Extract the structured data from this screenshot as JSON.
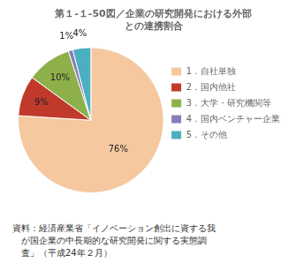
{
  "chart_data": {
    "type": "pie",
    "title": [
      "第１-１-50図／企業の研究開発における外部",
      "との連携割合"
    ],
    "categories": [
      "1．自社単独",
      "2．国内他社",
      "3．大学・研究機関等",
      "4．国内ベンチャー企業",
      "5．その他"
    ],
    "values": [
      76,
      9,
      10,
      1,
      4
    ],
    "value_labels": [
      "76%",
      "9%",
      "10%",
      "1%",
      "4%"
    ],
    "data_labels": true,
    "colors": [
      "#F5C8A0",
      "#C0392B",
      "#8DB04A",
      "#8B7BB5",
      "#4AAFBF"
    ],
    "legend": "right",
    "annotations": [
      "資料：経済産業省「イノベーション創出に資する我",
      "　が国企業の中長期的な研究開発に関する実態調",
      "　査」（平成24年２月）"
    ]
  }
}
